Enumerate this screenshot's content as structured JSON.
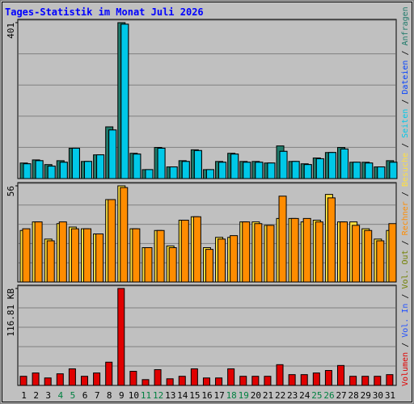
{
  "title": "Tages-Statistik im Monat Juli 2026",
  "legend_separator": " / ",
  "categories": [
    "1",
    "2",
    "3",
    "4",
    "5",
    "6",
    "7",
    "8",
    "9",
    "10",
    "11",
    "12",
    "13",
    "14",
    "15",
    "16",
    "17",
    "18",
    "19",
    "20",
    "21",
    "22",
    "23",
    "24",
    "25",
    "26",
    "27",
    "28",
    "29",
    "30",
    "31"
  ],
  "category_colors": [
    "#000000",
    "#000000",
    "#000000",
    "#008040",
    "#008040",
    "#000000",
    "#000000",
    "#000000",
    "#000000",
    "#000000",
    "#008040",
    "#008040",
    "#000000",
    "#000000",
    "#000000",
    "#000000",
    "#000000",
    "#008040",
    "#008040",
    "#000000",
    "#000000",
    "#000000",
    "#000000",
    "#000000",
    "#008040",
    "#008040",
    "#000000",
    "#000000",
    "#000000",
    "#000000",
    "#000000"
  ],
  "chart_data": [
    {
      "type": "bar",
      "ylim": [
        0,
        401
      ],
      "yticks": [
        401
      ],
      "series": [
        {
          "name": "Seiten",
          "color": "#00c8e8",
          "values": [
            38,
            46,
            32,
            42,
            78,
            44,
            61,
            125,
            397,
            63,
            23,
            78,
            30,
            44,
            72,
            23,
            42,
            63,
            42,
            42,
            40,
            70,
            44,
            36,
            51,
            67,
            76,
            42,
            40,
            30,
            42
          ]
        },
        {
          "name": "Dateien",
          "color": "#0040ff",
          "values": [
            38,
            46,
            32,
            42,
            78,
            44,
            61,
            125,
            397,
            63,
            23,
            78,
            30,
            44,
            72,
            23,
            42,
            63,
            42,
            42,
            40,
            70,
            44,
            36,
            51,
            67,
            76,
            42,
            40,
            30,
            42
          ]
        },
        {
          "name": "Anfragen",
          "color": "#1f7a6a",
          "values": [
            40,
            48,
            36,
            46,
            78,
            44,
            61,
            133,
            401,
            65,
            23,
            80,
            30,
            46,
            74,
            23,
            44,
            65,
            44,
            44,
            40,
            84,
            44,
            38,
            53,
            67,
            80,
            42,
            42,
            30,
            46
          ]
        }
      ]
    },
    {
      "type": "bar",
      "ylim": [
        0,
        56
      ],
      "yticks": [
        56
      ],
      "series": [
        {
          "name": "Rechner",
          "color": "#ff8c00",
          "values": [
            31,
            35,
            24,
            35,
            31,
            31,
            28,
            48,
            55,
            31,
            20,
            30,
            20,
            36,
            38,
            19,
            25,
            27,
            35,
            34,
            33,
            50,
            37,
            37,
            35,
            49,
            35,
            33,
            30,
            24,
            34
          ]
        },
        {
          "name": "Besuche",
          "color": "#ffe040",
          "values": [
            30,
            35,
            25,
            34,
            32,
            31,
            28,
            48,
            56,
            31,
            20,
            30,
            21,
            36,
            38,
            20,
            26,
            26,
            35,
            35,
            33,
            37,
            37,
            35,
            36,
            51,
            35,
            35,
            31,
            25,
            30
          ]
        }
      ]
    },
    {
      "type": "bar",
      "ylim": [
        0,
        116.81
      ],
      "yticks": [
        {
          "value": 116.81,
          "label": "116.81 KB"
        }
      ],
      "series": [
        {
          "name": "Volumen",
          "color": "#e00000",
          "values": [
            11,
            15,
            9,
            14,
            20,
            11,
            15,
            28,
            116.81,
            17,
            7,
            19,
            8,
            11,
            20,
            9,
            9,
            20,
            11,
            11,
            11,
            25,
            13,
            13,
            15,
            18,
            24,
            11,
            11,
            11,
            13
          ]
        },
        {
          "name": "Vol. In",
          "color": "#2050ff"
        },
        {
          "name": "Vol. Out",
          "color": "#708000"
        }
      ]
    }
  ]
}
